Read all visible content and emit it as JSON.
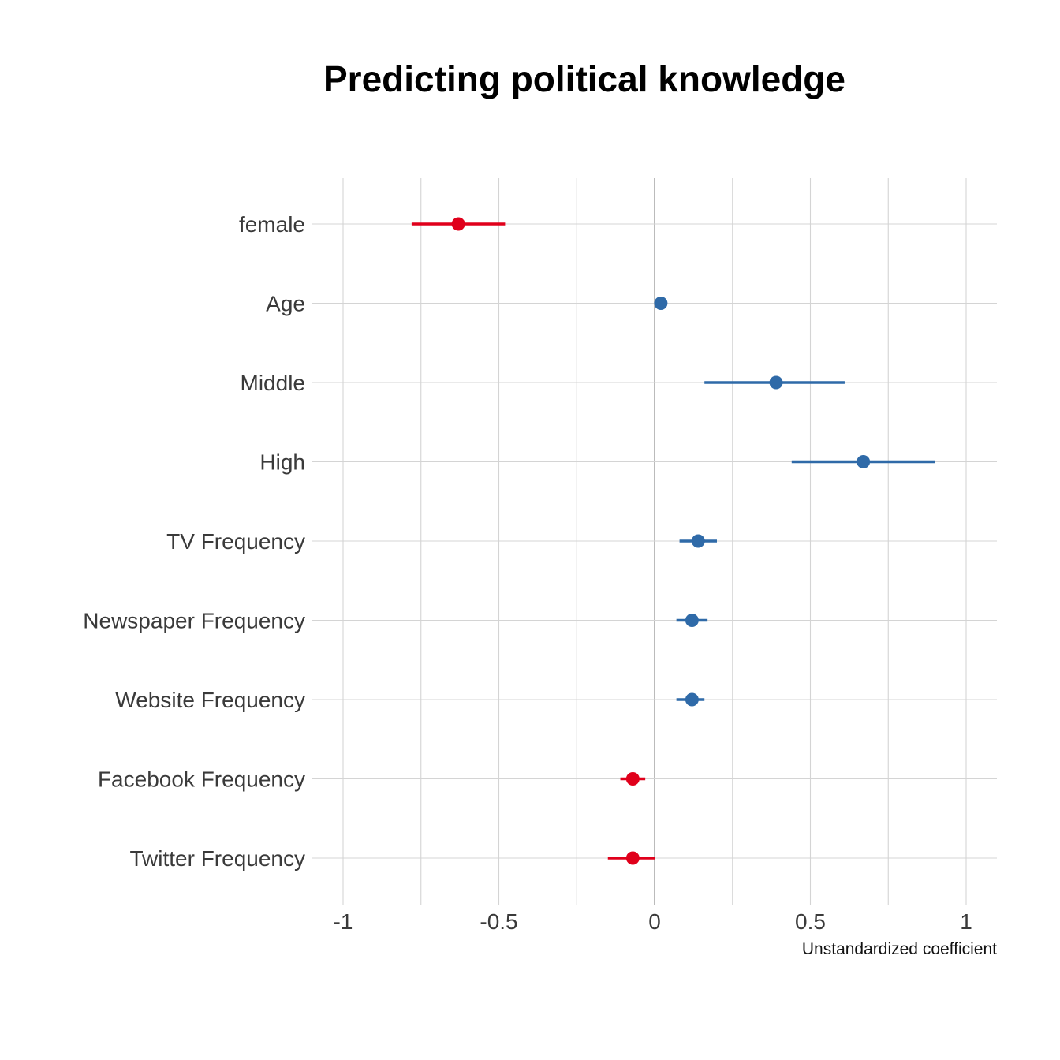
{
  "chart_data": {
    "type": "scatter",
    "title": "Predicting political knowledge",
    "xlabel": "Unstandardized coefficient",
    "ylabel": "",
    "xlim": [
      -1.1,
      1.1
    ],
    "x_ticks": [
      -1,
      -0.5,
      0,
      0.5,
      1
    ],
    "x_tick_labels": [
      "-1",
      "-0.5",
      "0",
      "0.5",
      "1"
    ],
    "grid": true,
    "legend": "none",
    "colors": {
      "positive": "#2f6aa8",
      "negative": "#e0001b",
      "zero_line": "#aaaaaa",
      "grid": "#d4d4d4"
    },
    "points": [
      {
        "label": "female",
        "estimate": -0.63,
        "ci_low": -0.78,
        "ci_high": -0.48
      },
      {
        "label": "Age",
        "estimate": 0.02,
        "ci_low": 0.01,
        "ci_high": 0.03
      },
      {
        "label": "Middle",
        "estimate": 0.39,
        "ci_low": 0.16,
        "ci_high": 0.61
      },
      {
        "label": "High",
        "estimate": 0.67,
        "ci_low": 0.44,
        "ci_high": 0.9
      },
      {
        "label": "TV Frequency",
        "estimate": 0.14,
        "ci_low": 0.08,
        "ci_high": 0.2
      },
      {
        "label": "Newspaper Frequency",
        "estimate": 0.12,
        "ci_low": 0.07,
        "ci_high": 0.17
      },
      {
        "label": "Website Frequency",
        "estimate": 0.12,
        "ci_low": 0.07,
        "ci_high": 0.16
      },
      {
        "label": "Facebook Frequency",
        "estimate": -0.07,
        "ci_low": -0.11,
        "ci_high": -0.03
      },
      {
        "label": "Twitter Frequency",
        "estimate": -0.07,
        "ci_low": -0.15,
        "ci_high": 0.0
      }
    ]
  }
}
